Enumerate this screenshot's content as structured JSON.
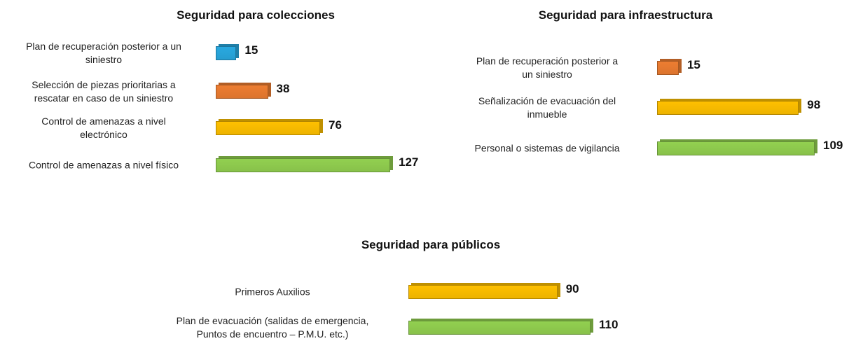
{
  "chart_data": [
    {
      "type": "bar",
      "title": "Seguridad para colecciones",
      "categories": [
        "Plan de recuperación posterior a un\nsiniestro",
        "Selección de piezas prioritarias a\nrescatar en caso de un siniestro",
        "Control de amenazas a nivel\nelectrónico",
        "Control de amenazas a nivel físico"
      ],
      "values": [
        15,
        38,
        76,
        127
      ],
      "colors": [
        "#29a9e0",
        "#ed7d31",
        "#ffc000",
        "#92d050"
      ]
    },
    {
      "type": "bar",
      "title": "Seguridad para infraestructura",
      "categories": [
        "Plan de recuperación posterior a\nun siniestro",
        "Señalización de evacuación  del\ninmueble",
        "Personal o sistemas de vigilancia"
      ],
      "values": [
        15,
        98,
        109
      ],
      "colors": [
        "#ed7d31",
        "#ffc000",
        "#92d050"
      ]
    },
    {
      "type": "bar",
      "title": "Seguridad para públicos",
      "categories": [
        "Primeros Auxilios",
        "Plan de evacuación (salidas de emergencia,\nPuntos de encuentro – P.M.U. etc.)"
      ],
      "values": [
        90,
        110
      ],
      "colors": [
        "#ffc000",
        "#92d050"
      ]
    }
  ]
}
